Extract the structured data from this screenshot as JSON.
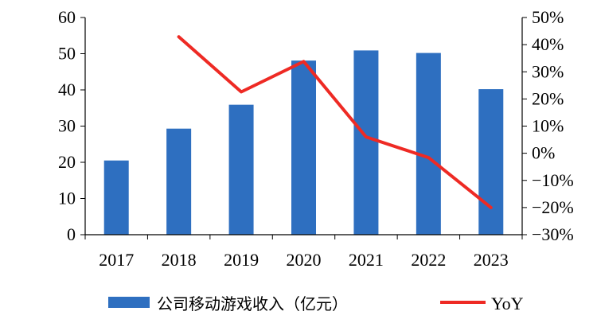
{
  "chart_data": {
    "type": "bar+line",
    "categories": [
      "2017",
      "2018",
      "2019",
      "2020",
      "2021",
      "2022",
      "2023"
    ],
    "series": [
      {
        "name": "公司移动游戏收入（亿元）",
        "type": "bar",
        "axis": "left",
        "color": "#2e6fc0",
        "values": [
          20.5,
          29.3,
          35.9,
          48.1,
          50.9,
          50.2,
          40.2
        ]
      },
      {
        "name": "YoY",
        "type": "line",
        "axis": "right",
        "color": "#ee2a24",
        "values": [
          null,
          42.9,
          22.6,
          33.8,
          6.0,
          -1.6,
          -20.0
        ]
      }
    ],
    "left_axis": {
      "ylim": [
        0,
        60
      ],
      "ticks": [
        "0",
        "10",
        "20",
        "30",
        "40",
        "50",
        "60"
      ]
    },
    "right_axis": {
      "ylim": [
        -30,
        50
      ],
      "ticks": [
        "-30%",
        "-20%",
        "-10%",
        "0%",
        "10%",
        "20%",
        "30%",
        "40%",
        "50%"
      ]
    },
    "grid": false,
    "legend_position": "bottom"
  }
}
